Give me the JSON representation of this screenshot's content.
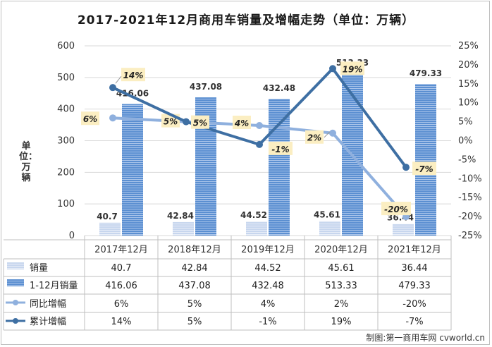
{
  "chart_data": {
    "type": "bar",
    "title": "2017-2021年12月商用车销量及增幅走势（单位：万辆）",
    "ylabel": "单位：万辆",
    "ylim": [
      0,
      600
    ],
    "y_ticks": [
      0,
      100,
      200,
      300,
      400,
      500,
      600
    ],
    "y2lim": [
      -25,
      25
    ],
    "y2_ticks": [
      "-25%",
      "-20%",
      "-15%",
      "-10%",
      "-5%",
      "0%",
      "5%",
      "10%",
      "15%",
      "20%",
      "25%"
    ],
    "categories": [
      "2017年12月",
      "2018年12月",
      "2019年12月",
      "2020年12月",
      "2021年12月"
    ],
    "series": [
      {
        "name": "销量",
        "type": "bar",
        "axis": "left",
        "values": [
          40.7,
          42.84,
          44.52,
          45.61,
          36.44
        ],
        "labels": [
          "40.7",
          "42.84",
          "44.52",
          "45.61",
          "36.44"
        ],
        "color": "#c7d6ee"
      },
      {
        "name": "1-12月销量",
        "type": "bar",
        "axis": "left",
        "values": [
          416.06,
          437.08,
          432.48,
          513.33,
          479.33
        ],
        "labels": [
          "416.06",
          "437.08",
          "432.48",
          "513.33",
          "479.33"
        ],
        "color": "#5b8fd1"
      },
      {
        "name": "同比增幅",
        "type": "line",
        "axis": "right",
        "values": [
          6,
          5,
          4,
          2,
          -20
        ],
        "labels": [
          "6%",
          "5%",
          "4%",
          "2%",
          "-20%"
        ],
        "color": "#8fb0de"
      },
      {
        "name": "累计增幅",
        "type": "line",
        "axis": "right",
        "values": [
          14,
          5,
          -1,
          19,
          -7
        ],
        "labels": [
          "14%",
          "5%",
          "-1%",
          "19%",
          "-7%"
        ],
        "color": "#3e6fa3"
      }
    ],
    "legend": "data table below plot",
    "grid": true
  },
  "credit": "制图:第一商用车网 cvworld.cn"
}
